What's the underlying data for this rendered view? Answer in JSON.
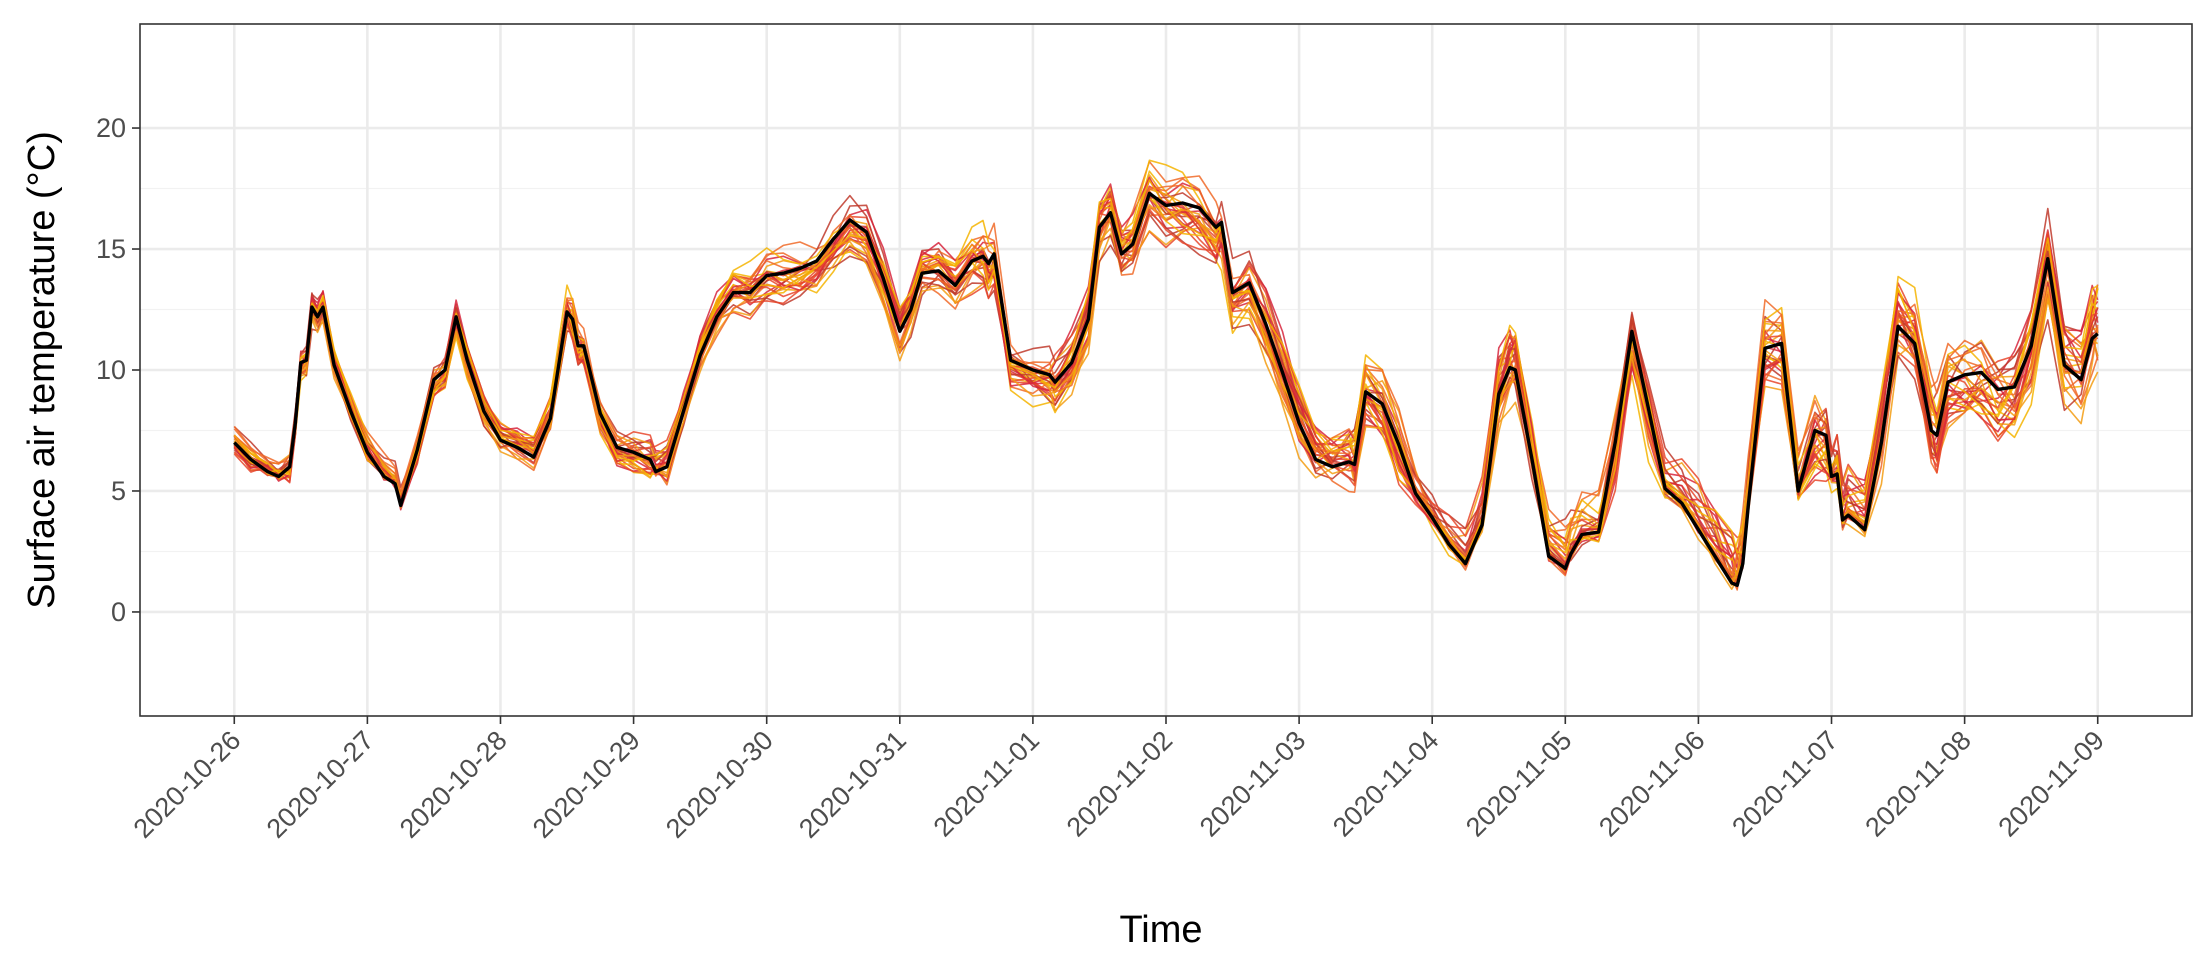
{
  "chart_data": {
    "type": "line",
    "title": "",
    "xlabel": "Time",
    "ylabel": "Surface air temperature (°C)",
    "x_tick_labels": [
      "2020-10-26",
      "2020-10-27",
      "2020-10-28",
      "2020-10-29",
      "2020-10-30",
      "2020-10-31",
      "2020-11-01",
      "2020-11-02",
      "2020-11-03",
      "2020-11-04",
      "2020-11-05",
      "2020-11-06",
      "2020-11-07",
      "2020-11-08",
      "2020-11-09"
    ],
    "y_ticks": [
      0,
      5,
      10,
      15,
      20
    ],
    "xlim": [
      "2020-10-25T07:00",
      "2020-11-09T17:00"
    ],
    "ylim": [
      -4.3,
      24.3
    ],
    "grid": true,
    "legend": "none",
    "observed": {
      "color": "#000000",
      "points": [
        [
          "2020-10-26T00:00",
          7.0
        ],
        [
          "2020-10-26T03:00",
          6.3
        ],
        [
          "2020-10-26T06:00",
          5.8
        ],
        [
          "2020-10-26T08:00",
          5.6
        ],
        [
          "2020-10-26T10:00",
          6.0
        ],
        [
          "2020-10-26T11:00",
          7.8
        ],
        [
          "2020-10-26T12:00",
          10.3
        ],
        [
          "2020-10-26T13:00",
          10.4
        ],
        [
          "2020-10-26T14:00",
          12.6
        ],
        [
          "2020-10-26T15:00",
          12.2
        ],
        [
          "2020-10-26T16:00",
          12.6
        ],
        [
          "2020-10-26T18:00",
          10.2
        ],
        [
          "2020-10-26T21:00",
          8.3
        ],
        [
          "2020-10-27T00:00",
          6.6
        ],
        [
          "2020-10-27T03:00",
          5.6
        ],
        [
          "2020-10-27T05:00",
          5.3
        ],
        [
          "2020-10-27T06:00",
          4.4
        ],
        [
          "2020-10-27T09:00",
          6.7
        ],
        [
          "2020-10-27T12:00",
          9.6
        ],
        [
          "2020-10-27T14:00",
          10.0
        ],
        [
          "2020-10-27T16:00",
          12.2
        ],
        [
          "2020-10-27T18:00",
          10.4
        ],
        [
          "2020-10-27T21:00",
          8.3
        ],
        [
          "2020-10-28T00:00",
          7.1
        ],
        [
          "2020-10-28T03:00",
          6.8
        ],
        [
          "2020-10-28T06:00",
          6.4
        ],
        [
          "2020-10-28T09:00",
          8.0
        ],
        [
          "2020-10-28T12:00",
          12.4
        ],
        [
          "2020-10-28T13:00",
          12.1
        ],
        [
          "2020-10-28T14:00",
          11.0
        ],
        [
          "2020-10-28T15:00",
          11.0
        ],
        [
          "2020-10-28T18:00",
          8.2
        ],
        [
          "2020-10-28T21:00",
          6.8
        ],
        [
          "2020-10-29T00:00",
          6.6
        ],
        [
          "2020-10-29T03:00",
          6.3
        ],
        [
          "2020-10-29T04:00",
          5.8
        ],
        [
          "2020-10-29T06:00",
          6.0
        ],
        [
          "2020-10-29T09:00",
          8.3
        ],
        [
          "2020-10-29T12:00",
          10.6
        ],
        [
          "2020-10-29T15:00",
          12.2
        ],
        [
          "2020-10-29T18:00",
          13.2
        ],
        [
          "2020-10-29T21:00",
          13.2
        ],
        [
          "2020-10-30T00:00",
          13.9
        ],
        [
          "2020-10-30T03:00",
          14.0
        ],
        [
          "2020-10-30T06:00",
          14.2
        ],
        [
          "2020-10-30T09:00",
          14.5
        ],
        [
          "2020-10-30T12:00",
          15.4
        ],
        [
          "2020-10-30T15:00",
          16.2
        ],
        [
          "2020-10-30T18:00",
          15.7
        ],
        [
          "2020-10-30T21:00",
          13.8
        ],
        [
          "2020-10-31T00:00",
          11.6
        ],
        [
          "2020-10-31T02:00",
          12.5
        ],
        [
          "2020-10-31T04:00",
          14.0
        ],
        [
          "2020-10-31T07:00",
          14.1
        ],
        [
          "2020-10-31T10:00",
          13.5
        ],
        [
          "2020-10-31T13:00",
          14.5
        ],
        [
          "2020-10-31T15:00",
          14.7
        ],
        [
          "2020-10-31T16:00",
          14.4
        ],
        [
          "2020-10-31T17:00",
          14.8
        ],
        [
          "2020-10-31T20:00",
          10.4
        ],
        [
          "2020-11-01T00:00",
          10.0
        ],
        [
          "2020-11-01T03:00",
          9.8
        ],
        [
          "2020-11-01T04:00",
          9.5
        ],
        [
          "2020-11-01T07:00",
          10.3
        ],
        [
          "2020-11-01T10:00",
          12.1
        ],
        [
          "2020-11-01T12:00",
          15.9
        ],
        [
          "2020-11-01T14:00",
          16.5
        ],
        [
          "2020-11-01T16:00",
          14.8
        ],
        [
          "2020-11-01T18:00",
          15.2
        ],
        [
          "2020-11-01T21:00",
          17.3
        ],
        [
          "2020-11-02T00:00",
          16.8
        ],
        [
          "2020-11-02T03:00",
          16.9
        ],
        [
          "2020-11-02T06:00",
          16.7
        ],
        [
          "2020-11-02T09:00",
          15.9
        ],
        [
          "2020-11-02T10:00",
          16.1
        ],
        [
          "2020-11-02T12:00",
          13.2
        ],
        [
          "2020-11-02T15:00",
          13.6
        ],
        [
          "2020-11-02T18:00",
          11.9
        ],
        [
          "2020-11-02T21:00",
          9.9
        ],
        [
          "2020-11-03T00:00",
          7.8
        ],
        [
          "2020-11-03T03:00",
          6.3
        ],
        [
          "2020-11-03T06:00",
          6.0
        ],
        [
          "2020-11-03T09:00",
          6.2
        ],
        [
          "2020-11-03T10:00",
          6.1
        ],
        [
          "2020-11-03T12:00",
          9.1
        ],
        [
          "2020-11-03T15:00",
          8.6
        ],
        [
          "2020-11-03T18:00",
          6.9
        ],
        [
          "2020-11-03T21:00",
          4.9
        ],
        [
          "2020-11-04T00:00",
          3.9
        ],
        [
          "2020-11-04T03:00",
          2.8
        ],
        [
          "2020-11-04T06:00",
          2.0
        ],
        [
          "2020-11-04T09:00",
          3.6
        ],
        [
          "2020-11-04T12:00",
          9.0
        ],
        [
          "2020-11-04T14:00",
          10.1
        ],
        [
          "2020-11-04T15:00",
          10.0
        ],
        [
          "2020-11-04T18:00",
          6.3
        ],
        [
          "2020-11-04T21:00",
          2.3
        ],
        [
          "2020-11-05T00:00",
          1.8
        ],
        [
          "2020-11-05T01:00",
          2.4
        ],
        [
          "2020-11-05T03:00",
          3.2
        ],
        [
          "2020-11-05T06:00",
          3.3
        ],
        [
          "2020-11-05T09:00",
          7.0
        ],
        [
          "2020-11-05T12:00",
          11.6
        ],
        [
          "2020-11-05T15:00",
          8.4
        ],
        [
          "2020-11-05T18:00",
          5.1
        ],
        [
          "2020-11-05T21:00",
          4.5
        ],
        [
          "2020-11-06T00:00",
          3.4
        ],
        [
          "2020-11-06T03:00",
          2.3
        ],
        [
          "2020-11-06T06:00",
          1.2
        ],
        [
          "2020-11-06T07:00",
          1.1
        ],
        [
          "2020-11-06T08:00",
          2.0
        ],
        [
          "2020-11-06T09:00",
          4.4
        ],
        [
          "2020-11-06T12:00",
          10.9
        ],
        [
          "2020-11-06T15:00",
          11.1
        ],
        [
          "2020-11-06T18:00",
          5.0
        ],
        [
          "2020-11-06T21:00",
          7.5
        ],
        [
          "2020-11-06T23:00",
          7.3
        ],
        [
          "2020-11-07T00:00",
          5.6
        ],
        [
          "2020-11-07T01:00",
          5.7
        ],
        [
          "2020-11-07T02:00",
          3.8
        ],
        [
          "2020-11-07T03:00",
          4.0
        ],
        [
          "2020-11-07T06:00",
          3.4
        ],
        [
          "2020-11-07T09:00",
          7.0
        ],
        [
          "2020-11-07T12:00",
          11.8
        ],
        [
          "2020-11-07T15:00",
          11.1
        ],
        [
          "2020-11-07T18:00",
          7.5
        ],
        [
          "2020-11-07T19:00",
          7.3
        ],
        [
          "2020-11-07T21:00",
          9.5
        ],
        [
          "2020-11-08T00:00",
          9.8
        ],
        [
          "2020-11-08T03:00",
          9.9
        ],
        [
          "2020-11-08T06:00",
          9.2
        ],
        [
          "2020-11-08T09:00",
          9.3
        ],
        [
          "2020-11-08T12:00",
          11.0
        ],
        [
          "2020-11-08T15:00",
          14.6
        ],
        [
          "2020-11-08T18:00",
          10.2
        ],
        [
          "2020-11-08T21:00",
          9.6
        ],
        [
          "2020-11-08T23:00",
          11.3
        ],
        [
          "2020-11-09T00:00",
          11.5
        ]
      ]
    },
    "ensemble": {
      "description": "Many ensemble member traces (thin lines) shown in red-orange-yellow tones around the observed series",
      "colors": [
        "#c0392b",
        "#d7263d",
        "#e8472b",
        "#f06a28",
        "#f39c12",
        "#f4b400"
      ],
      "member_count": 30
    }
  }
}
